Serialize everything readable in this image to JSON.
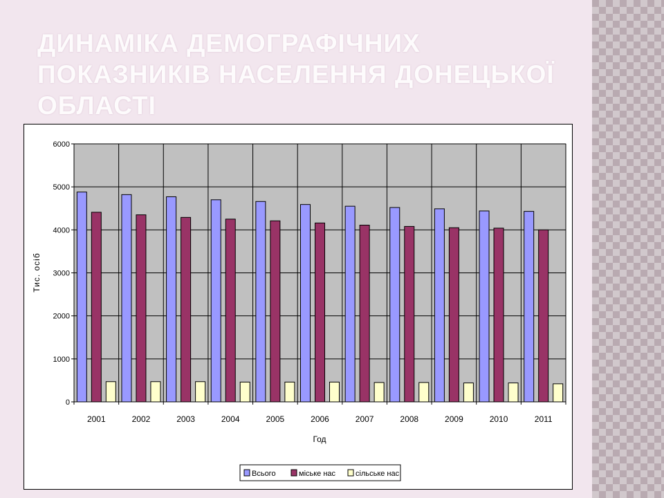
{
  "slide": {
    "title": "Динаміка демографічних показників населення Донецької області"
  },
  "chart_data": {
    "type": "bar",
    "title": "",
    "xlabel": "Год",
    "ylabel": "Тис. осіб",
    "ylim": [
      0,
      6000
    ],
    "yticks": [
      0,
      1000,
      2000,
      3000,
      4000,
      5000,
      6000
    ],
    "grid": true,
    "legend_position": "bottom-center",
    "categories": [
      "2001",
      "2002",
      "2003",
      "2004",
      "2005",
      "2006",
      "2007",
      "2008",
      "2009",
      "2010",
      "2011"
    ],
    "series": [
      {
        "name": "Всього",
        "color": "#9999ff",
        "values": [
          4880,
          4820,
          4770,
          4700,
          4660,
          4590,
          4550,
          4520,
          4490,
          4440,
          4430
        ]
      },
      {
        "name": "міське нас",
        "color": "#993366",
        "values": [
          4410,
          4350,
          4290,
          4250,
          4210,
          4160,
          4110,
          4080,
          4050,
          4040,
          4000
        ]
      },
      {
        "name": "сільське нас",
        "color": "#ffffcc",
        "values": [
          470,
          470,
          470,
          460,
          460,
          460,
          450,
          450,
          440,
          440,
          420
        ]
      }
    ]
  }
}
